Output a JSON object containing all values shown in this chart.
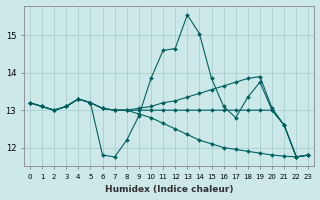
{
  "title": "",
  "xlabel": "Humidex (Indice chaleur)",
  "ylabel": "",
  "bg_color": "#cce8e8",
  "grid_color": "#aad0d0",
  "line_color": "#006060",
  "xlim": [
    -0.5,
    23.5
  ],
  "ylim": [
    11.5,
    15.8
  ],
  "yticks": [
    12,
    13,
    14,
    15
  ],
  "xticks": [
    0,
    1,
    2,
    3,
    4,
    5,
    6,
    7,
    8,
    9,
    10,
    11,
    12,
    13,
    14,
    15,
    16,
    17,
    18,
    19,
    20,
    21,
    22,
    23
  ],
  "series": [
    [
      13.2,
      13.1,
      13.0,
      13.1,
      13.3,
      13.2,
      11.8,
      11.75,
      12.2,
      12.85,
      13.85,
      14.6,
      14.65,
      15.55,
      15.05,
      13.85,
      13.1,
      12.8,
      13.35,
      13.75,
      13.0,
      12.6,
      11.75,
      11.8
    ],
    [
      13.2,
      13.1,
      13.0,
      13.1,
      13.3,
      13.2,
      13.05,
      13.0,
      13.0,
      13.05,
      13.1,
      13.2,
      13.25,
      13.35,
      13.45,
      13.55,
      13.65,
      13.75,
      13.85,
      13.9,
      13.05,
      12.6,
      11.75,
      11.8
    ],
    [
      13.2,
      13.1,
      13.0,
      13.1,
      13.3,
      13.2,
      13.05,
      13.0,
      13.0,
      13.0,
      13.0,
      13.0,
      13.0,
      13.0,
      13.0,
      13.0,
      13.0,
      13.0,
      13.0,
      13.0,
      13.0,
      12.6,
      11.75,
      11.8
    ],
    [
      13.2,
      13.1,
      13.0,
      13.1,
      13.3,
      13.2,
      13.05,
      13.0,
      13.0,
      12.9,
      12.8,
      12.65,
      12.5,
      12.35,
      12.2,
      12.1,
      12.0,
      11.95,
      11.9,
      11.85,
      11.8,
      11.77,
      11.75,
      11.8
    ]
  ]
}
